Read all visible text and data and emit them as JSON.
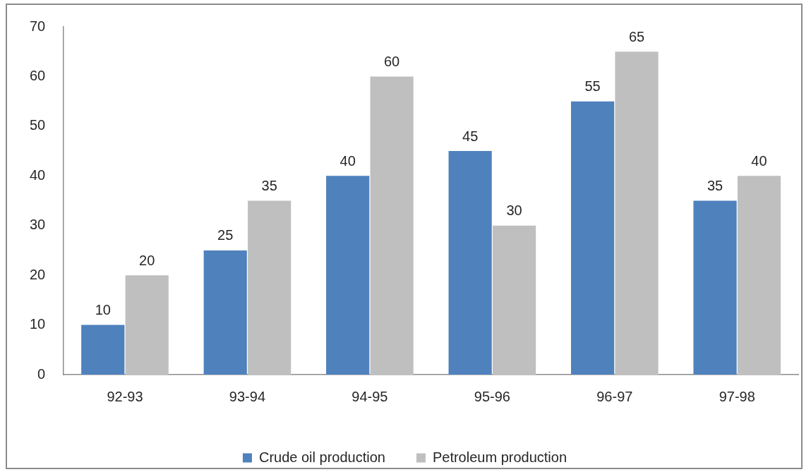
{
  "chart_data": {
    "type": "bar",
    "categories": [
      "92-93",
      "93-94",
      "94-95",
      "95-96",
      "96-97",
      "97-98"
    ],
    "series": [
      {
        "name": "Crude oil production",
        "color": "#4f81bd",
        "values": [
          10,
          25,
          40,
          45,
          55,
          35
        ]
      },
      {
        "name": "Petroleum production",
        "color": "#bfbfbf",
        "values": [
          20,
          35,
          60,
          30,
          65,
          40
        ]
      }
    ],
    "ylim": [
      0,
      70
    ],
    "yticks": [
      0,
      10,
      20,
      30,
      40,
      50,
      60,
      70
    ],
    "grid": false,
    "legend": "bottom",
    "data_labels": true
  }
}
